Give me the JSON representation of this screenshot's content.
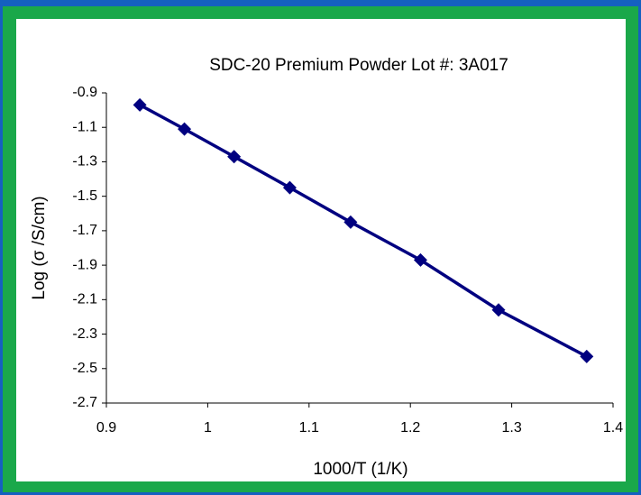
{
  "chart_data": {
    "type": "line",
    "title": "SDC-20 Premium Powder  Lot #: 3A017",
    "x_label": "1000/T (1/K)",
    "y_label": "Log (σ /S/cm)",
    "series": [
      {
        "name": "SDC-20",
        "color": "#000080",
        "x": [
          0.933,
          0.977,
          1.026,
          1.081,
          1.141,
          1.21,
          1.287,
          1.374
        ],
        "values": [
          -0.97,
          -1.11,
          -1.27,
          -1.45,
          -1.65,
          -1.87,
          -2.16,
          -2.43
        ]
      }
    ],
    "xlim": [
      0.9,
      1.4
    ],
    "xticks": [
      0.9,
      1,
      1.1,
      1.2,
      1.3,
      1.4
    ],
    "ylim": [
      -2.7,
      -0.9
    ],
    "yticks": [
      -0.9,
      -1.1,
      -1.3,
      -1.5,
      -1.7,
      -1.9,
      -2.1,
      -2.3,
      -2.5,
      -2.7
    ]
  }
}
